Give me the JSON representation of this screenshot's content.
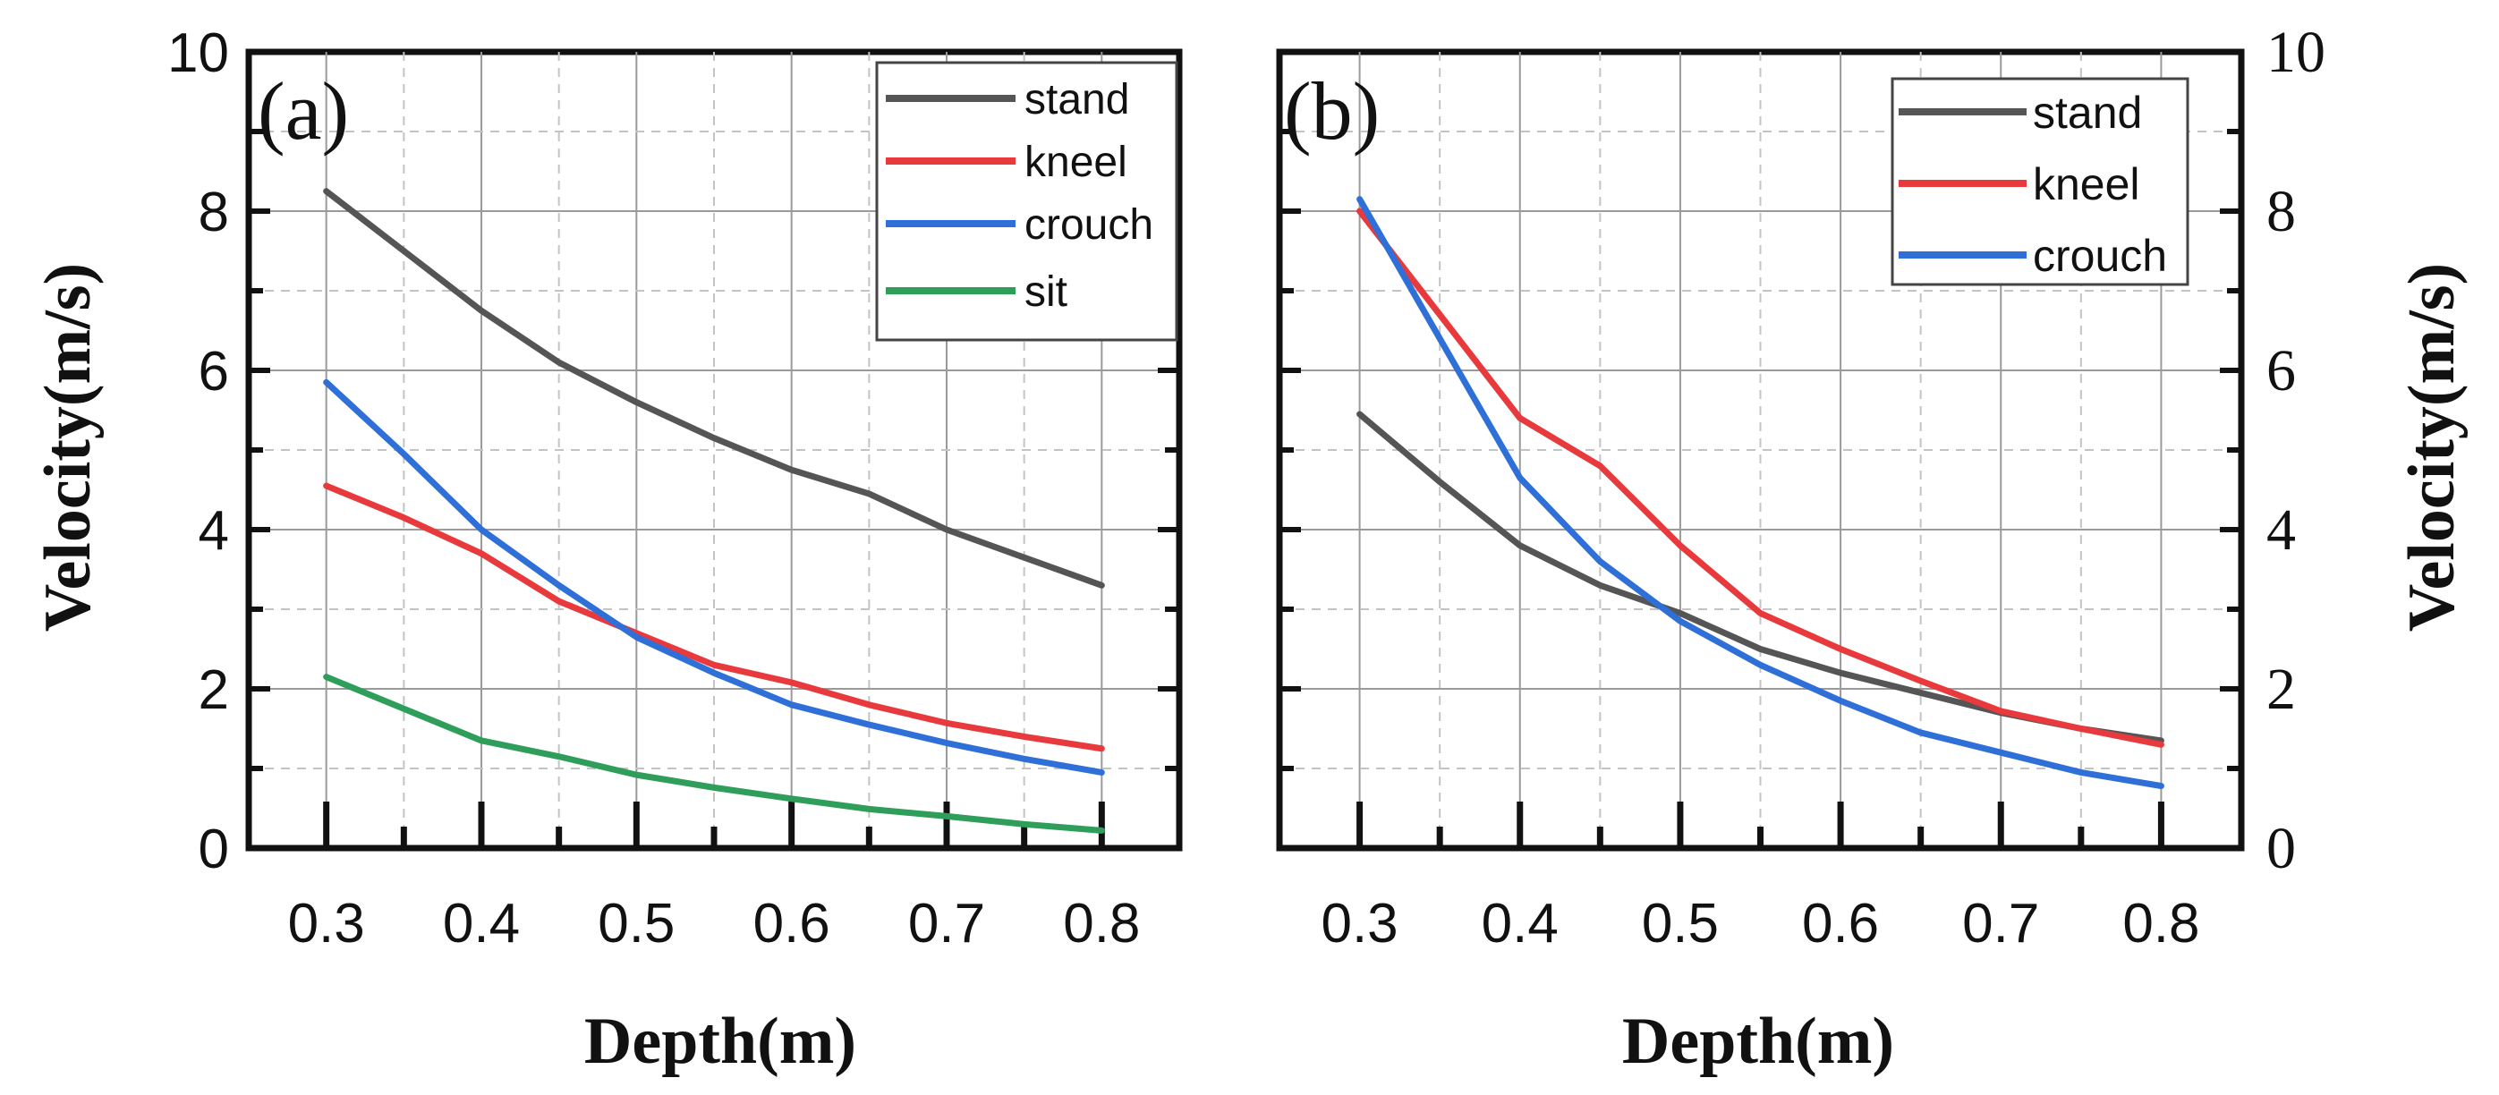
{
  "chart_data": [
    {
      "type": "line",
      "panel_label": "(a)",
      "xlabel": "Depth(m)",
      "ylabel": "Velocity(m/s)",
      "xlim": [
        0.25,
        0.85
      ],
      "ylim": [
        0,
        10
      ],
      "x_tick_labels": [
        "0.3",
        "0.4",
        "0.5",
        "0.6",
        "0.7",
        "0.8"
      ],
      "y_tick_labels": [
        "0",
        "2",
        "4",
        "6",
        "8",
        "10"
      ],
      "grid": true,
      "legend_position": "top-right",
      "x": [
        0.3,
        0.35,
        0.4,
        0.45,
        0.5,
        0.55,
        0.6,
        0.65,
        0.7,
        0.75,
        0.8
      ],
      "series": [
        {
          "name": "stand",
          "color": "#555555",
          "values": [
            8.25,
            7.5,
            6.75,
            6.1,
            5.6,
            5.15,
            4.75,
            4.45,
            4.0,
            3.65,
            3.3
          ]
        },
        {
          "name": "kneel",
          "color": "#e8393c",
          "values": [
            4.55,
            4.15,
            3.7,
            3.1,
            2.7,
            2.3,
            2.08,
            1.8,
            1.57,
            1.4,
            1.25
          ]
        },
        {
          "name": "crouch",
          "color": "#2f6fd8",
          "values": [
            5.85,
            4.95,
            4.0,
            3.3,
            2.65,
            2.2,
            1.8,
            1.55,
            1.32,
            1.12,
            0.95
          ]
        },
        {
          "name": "sit",
          "color": "#2e9e5a",
          "values": [
            2.15,
            1.75,
            1.35,
            1.15,
            0.92,
            0.76,
            0.62,
            0.49,
            0.4,
            0.3,
            0.22
          ]
        }
      ]
    },
    {
      "type": "line",
      "panel_label": "(b)",
      "xlabel": "Depth(m)",
      "ylabel": "Velocity(m/s)",
      "xlim": [
        0.25,
        0.85
      ],
      "ylim": [
        0,
        10
      ],
      "x_tick_labels": [
        "0.3",
        "0.4",
        "0.5",
        "0.6",
        "0.7",
        "0.8"
      ],
      "y_tick_labels": [
        "0",
        "2",
        "4",
        "6",
        "8",
        "10"
      ],
      "y_axis_side": "right",
      "grid": true,
      "legend_position": "top-right",
      "x": [
        0.3,
        0.35,
        0.4,
        0.45,
        0.5,
        0.55,
        0.6,
        0.65,
        0.7,
        0.75,
        0.8
      ],
      "series": [
        {
          "name": "stand",
          "color": "#555555",
          "values": [
            5.45,
            4.6,
            3.8,
            3.3,
            2.95,
            2.5,
            2.2,
            1.95,
            1.7,
            1.5,
            1.35
          ]
        },
        {
          "name": "kneel",
          "color": "#e8393c",
          "values": [
            8.0,
            6.7,
            5.4,
            4.8,
            3.8,
            2.95,
            2.5,
            2.1,
            1.72,
            1.5,
            1.3
          ]
        },
        {
          "name": "crouch",
          "color": "#2f6fd8",
          "values": [
            8.15,
            6.4,
            4.65,
            3.6,
            2.85,
            2.3,
            1.85,
            1.45,
            1.2,
            0.95,
            0.78
          ]
        }
      ]
    }
  ]
}
